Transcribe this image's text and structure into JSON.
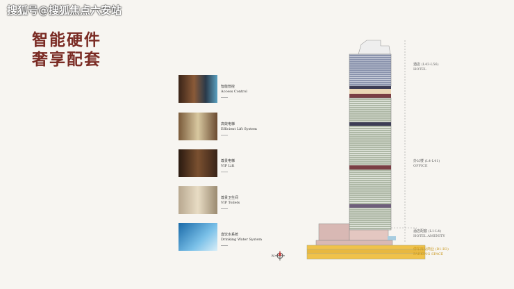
{
  "watermark": "搜狐号@搜狐焦点六安站",
  "title": {
    "line1": "智能硬件",
    "line2": "奢享配套"
  },
  "features": [
    {
      "zh": "智能管控",
      "en": "Access Control"
    },
    {
      "zh": "高效电梯",
      "en": "Efficient Lift System"
    },
    {
      "zh": "尊贵电梯",
      "en": "VIP Lift"
    },
    {
      "zh": "尊贵卫生间",
      "en": "VIP Toilets"
    },
    {
      "zh": "直饮水系统",
      "en": "Drinking Water System"
    }
  ],
  "tower_labels": [
    {
      "zh": "酒店 (L43-L56)",
      "en": "HOTEL"
    },
    {
      "zh": "办公楼 (L4-L41)",
      "en": "OFFICE"
    },
    {
      "zh": "酒店配套 (L1-L4)",
      "en": "HOTEL AMENITY"
    },
    {
      "zh": "停车库及商业 (B1-B3)",
      "en": "PARKING SPACE"
    }
  ],
  "compass": "N"
}
